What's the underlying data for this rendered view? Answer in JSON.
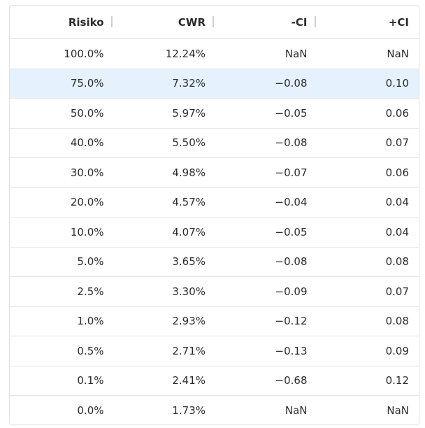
{
  "table": {
    "columns": [
      "Risiko",
      "CWR",
      "-CI",
      "+CI"
    ],
    "selected_row": 1,
    "rows": [
      {
        "risiko": "100.0%",
        "cwr": "12.24%",
        "ci_minus": "NaN",
        "ci_plus": "NaN"
      },
      {
        "risiko": "75.0%",
        "cwr": "7.32%",
        "ci_minus": "−0.08",
        "ci_plus": "0.10"
      },
      {
        "risiko": "50.0%",
        "cwr": "5.97%",
        "ci_minus": "−0.05",
        "ci_plus": "0.06"
      },
      {
        "risiko": "40.0%",
        "cwr": "5.50%",
        "ci_minus": "−0.08",
        "ci_plus": "0.07"
      },
      {
        "risiko": "30.0%",
        "cwr": "4.98%",
        "ci_minus": "−0.07",
        "ci_plus": "0.06"
      },
      {
        "risiko": "20.0%",
        "cwr": "4.57%",
        "ci_minus": "−0.04",
        "ci_plus": "0.04"
      },
      {
        "risiko": "10.0%",
        "cwr": "4.07%",
        "ci_minus": "−0.05",
        "ci_plus": "0.04"
      },
      {
        "risiko": "5.0%",
        "cwr": "3.65%",
        "ci_minus": "−0.08",
        "ci_plus": "0.08"
      },
      {
        "risiko": "2.5%",
        "cwr": "3.30%",
        "ci_minus": "−0.09",
        "ci_plus": "0.07"
      },
      {
        "risiko": "1.0%",
        "cwr": "2.93%",
        "ci_minus": "−0.12",
        "ci_plus": "0.08"
      },
      {
        "risiko": "0.5%",
        "cwr": "2.71%",
        "ci_minus": "−0.13",
        "ci_plus": "0.09"
      },
      {
        "risiko": "0.1%",
        "cwr": "2.41%",
        "ci_minus": "−0.68",
        "ci_plus": "0.12"
      },
      {
        "risiko": "0.0%",
        "cwr": "1.73%",
        "ci_minus": "NaN",
        "ci_plus": "NaN"
      }
    ]
  },
  "colors": {
    "selected_row_bg": "#e5f1fc",
    "border": "#e0e0e0",
    "text": "#2b2b2b"
  }
}
